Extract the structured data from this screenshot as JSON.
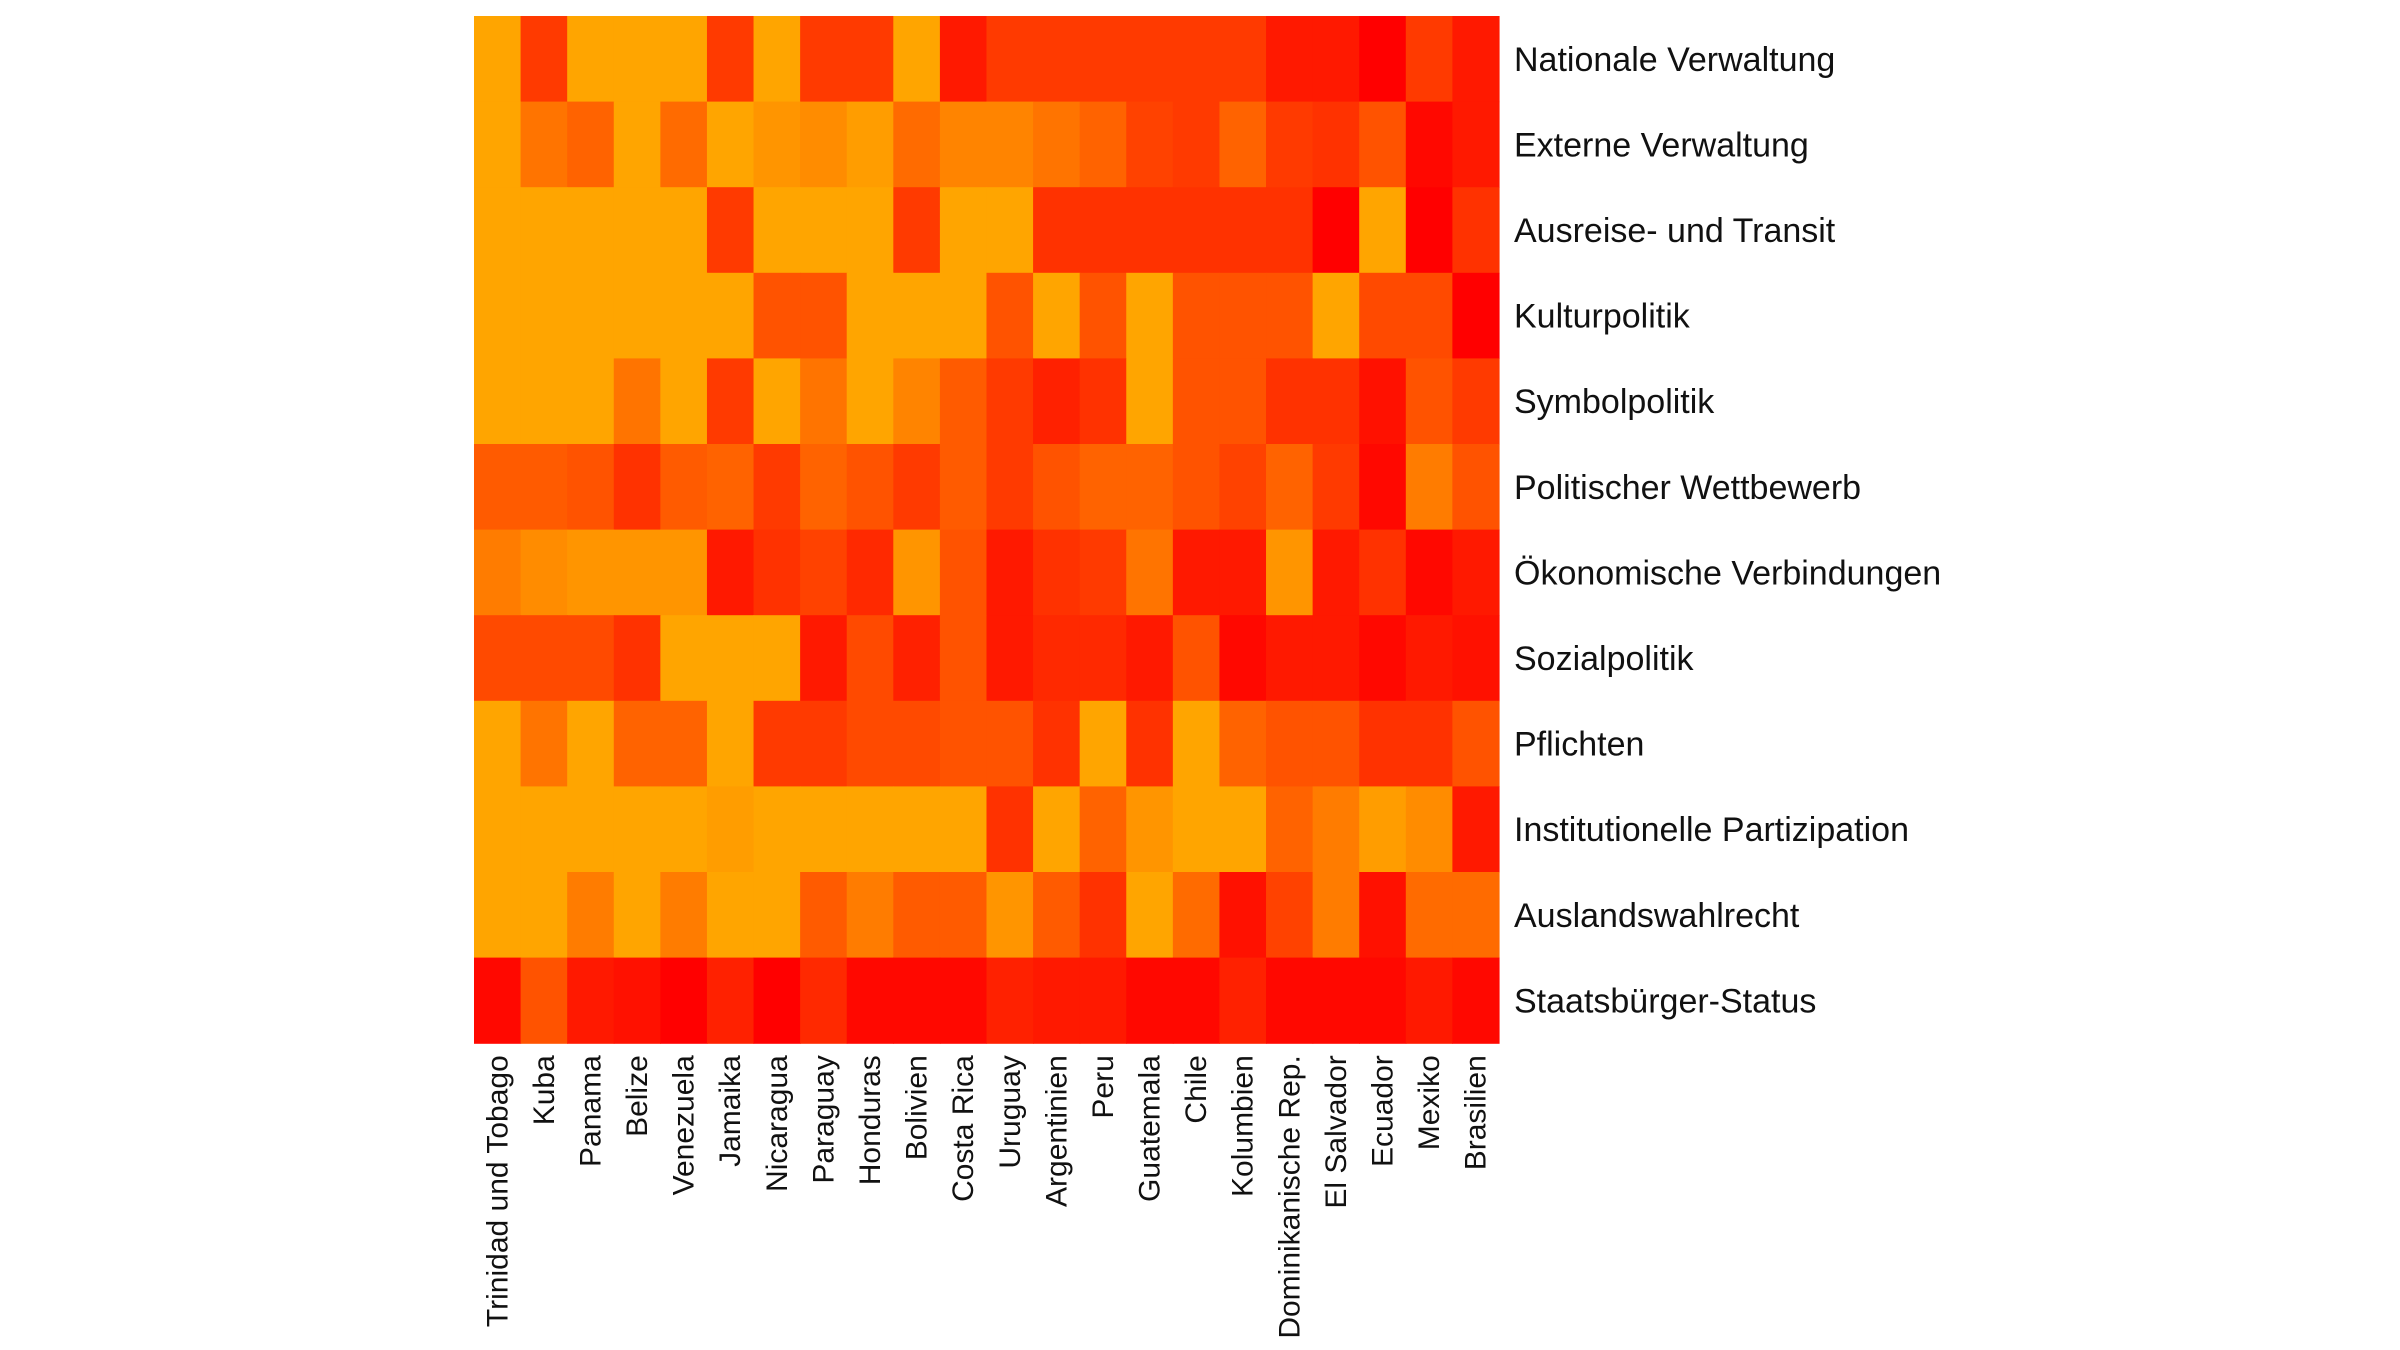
{
  "chart_data": {
    "type": "heatmap",
    "title": "",
    "colorscale": {
      "low": "#FFA500",
      "high": "#FF0000"
    },
    "rows": [
      "Nationale Verwaltung",
      "Externe Verwaltung",
      "Ausreise- und Transit",
      "Kulturpolitik",
      "Symbolpolitik",
      "Politischer Wettbewerb",
      "Ökonomische Verbindungen",
      "Sozialpolitik",
      "Pflichten",
      "Institutionelle Partizipation",
      "Auslandswahlrecht",
      "Staatsbürger-Status"
    ],
    "columns": [
      "Trinidad und Tobago",
      "Kuba",
      "Panama",
      "Belize",
      "Venezuela",
      "Jamaika",
      "Nicaragua",
      "Paraguay",
      "Honduras",
      "Bolivien",
      "Costa Rica",
      "Uruguay",
      "Argentinien",
      "Peru",
      "Guatemala",
      "Chile",
      "Kolumbien",
      "Dominikanische Rep.",
      "El Salvador",
      "Ecuador",
      "Mexiko",
      "Brasilien"
    ],
    "values": [
      [
        0.0,
        0.65,
        0.0,
        0.0,
        0.0,
        0.65,
        0.0,
        0.65,
        0.65,
        0.0,
        0.85,
        0.65,
        0.65,
        0.65,
        0.65,
        0.65,
        0.65,
        0.85,
        0.85,
        1.0,
        0.65,
        0.85
      ],
      [
        0.0,
        0.3,
        0.4,
        0.0,
        0.35,
        0.0,
        0.1,
        0.15,
        0.05,
        0.35,
        0.2,
        0.2,
        0.3,
        0.4,
        0.6,
        0.65,
        0.4,
        0.65,
        0.7,
        0.5,
        0.95,
        0.85
      ],
      [
        0.0,
        0.0,
        0.0,
        0.0,
        0.0,
        0.65,
        0.0,
        0.0,
        0.0,
        0.65,
        0.0,
        0.0,
        0.7,
        0.7,
        0.7,
        0.7,
        0.7,
        0.7,
        1.0,
        0.0,
        1.0,
        0.7
      ],
      [
        0.0,
        0.0,
        0.0,
        0.0,
        0.0,
        0.0,
        0.5,
        0.5,
        0.0,
        0.0,
        0.0,
        0.5,
        0.0,
        0.5,
        0.0,
        0.5,
        0.5,
        0.5,
        0.0,
        0.55,
        0.55,
        1.0
      ],
      [
        0.0,
        0.0,
        0.0,
        0.3,
        0.0,
        0.65,
        0.0,
        0.3,
        0.0,
        0.2,
        0.45,
        0.65,
        0.8,
        0.7,
        0.0,
        0.5,
        0.5,
        0.7,
        0.7,
        0.9,
        0.5,
        0.65
      ],
      [
        0.45,
        0.45,
        0.5,
        0.7,
        0.45,
        0.4,
        0.65,
        0.4,
        0.5,
        0.65,
        0.45,
        0.65,
        0.5,
        0.4,
        0.4,
        0.5,
        0.6,
        0.4,
        0.65,
        0.95,
        0.25,
        0.5
      ],
      [
        0.25,
        0.15,
        0.1,
        0.1,
        0.1,
        0.85,
        0.7,
        0.6,
        0.75,
        0.1,
        0.5,
        0.85,
        0.7,
        0.65,
        0.3,
        0.85,
        0.85,
        0.1,
        0.85,
        0.7,
        0.95,
        0.85
      ],
      [
        0.55,
        0.55,
        0.55,
        0.7,
        0.0,
        0.0,
        0.0,
        0.85,
        0.55,
        0.8,
        0.5,
        0.85,
        0.75,
        0.75,
        0.85,
        0.5,
        0.95,
        0.85,
        0.85,
        0.95,
        0.85,
        0.9
      ],
      [
        0.0,
        0.3,
        0.0,
        0.4,
        0.4,
        0.0,
        0.65,
        0.65,
        0.55,
        0.55,
        0.5,
        0.5,
        0.7,
        0.0,
        0.7,
        0.0,
        0.4,
        0.5,
        0.5,
        0.7,
        0.7,
        0.5
      ],
      [
        0.0,
        0.0,
        0.0,
        0.0,
        0.0,
        0.05,
        0.0,
        0.0,
        0.0,
        0.0,
        0.0,
        0.7,
        0.0,
        0.4,
        0.1,
        0.0,
        0.0,
        0.4,
        0.25,
        0.05,
        0.15,
        0.85
      ],
      [
        0.0,
        0.0,
        0.25,
        0.0,
        0.25,
        0.0,
        0.0,
        0.45,
        0.25,
        0.45,
        0.45,
        0.1,
        0.45,
        0.7,
        0.0,
        0.35,
        0.9,
        0.6,
        0.25,
        0.9,
        0.35,
        0.35
      ],
      [
        0.95,
        0.5,
        0.85,
        0.9,
        1.0,
        0.8,
        1.0,
        0.75,
        0.95,
        0.95,
        0.95,
        0.8,
        0.85,
        0.85,
        0.95,
        0.95,
        0.8,
        0.95,
        0.95,
        0.95,
        0.85,
        0.95
      ]
    ]
  }
}
